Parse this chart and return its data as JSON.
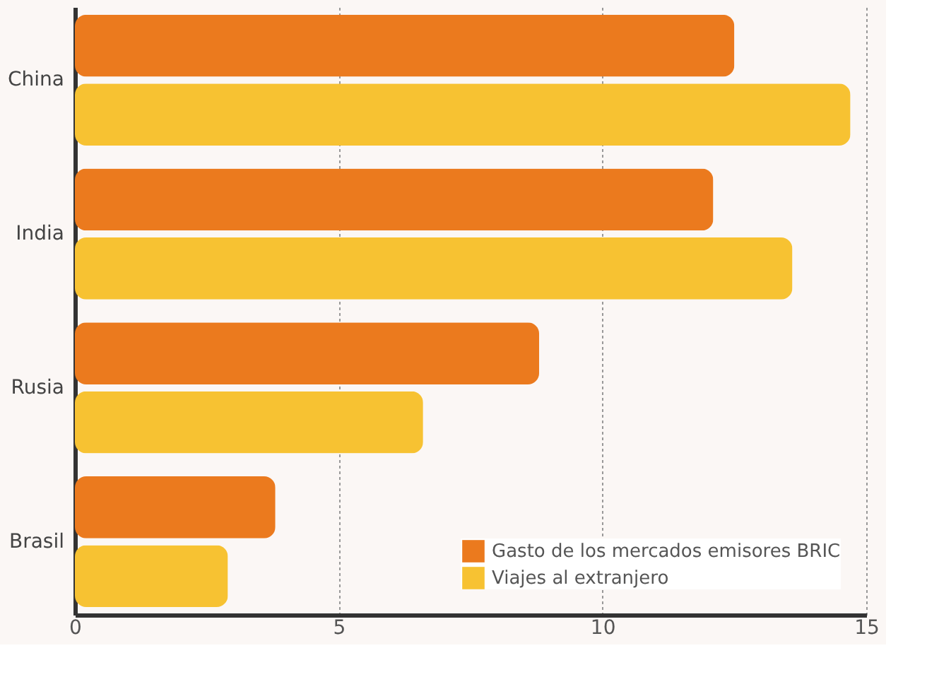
{
  "chart_data": {
    "type": "bar",
    "orientation": "horizontal",
    "categories": [
      "China",
      "India",
      "Rusia",
      "Brasil"
    ],
    "series": [
      {
        "name": "Gasto de los mercados emisores BRIC",
        "color": "#eb7a1e",
        "values": [
          12.5,
          12.1,
          8.8,
          3.8
        ]
      },
      {
        "name": "Viajes al extranjero",
        "color": "#f7c232",
        "values": [
          14.7,
          13.6,
          6.6,
          2.9
        ]
      }
    ],
    "xlim": [
      0,
      15
    ],
    "xticks": [
      0,
      5,
      10,
      15
    ],
    "grid": "x",
    "legend": "bottom right"
  }
}
